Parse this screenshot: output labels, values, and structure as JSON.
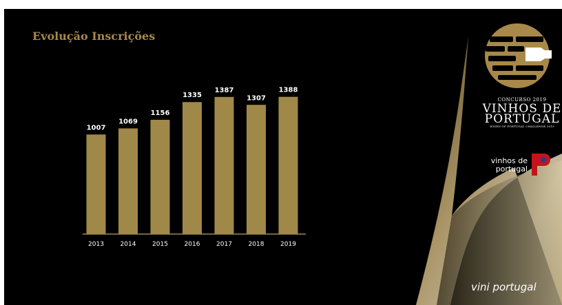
{
  "slide": {
    "title": "Evolução Inscrições"
  },
  "branding": {
    "contest_line1": "CONCURSO 2019",
    "contest_line2": "VINHOS DE PORTUGAL",
    "contest_line3": "WINES OF PORTUGAL CHALLENGE 2019",
    "vinhos_line1": "vinhos de",
    "vinhos_line2": "portugal",
    "footer": "vini portugal",
    "colors": {
      "gold": "#a8894a",
      "background": "#000000",
      "red": "#c0161b",
      "text": "#ffffff"
    }
  },
  "chart_data": {
    "type": "bar",
    "title": "",
    "xlabel": "",
    "ylabel": "",
    "categories": [
      "2013",
      "2014",
      "2015",
      "2016",
      "2017",
      "2018",
      "2019"
    ],
    "values": [
      1007,
      1069,
      1156,
      1335,
      1387,
      1307,
      1388
    ],
    "data_labels": [
      "1007",
      "1069",
      "1156",
      "1335",
      "1387",
      "1307",
      "1388"
    ],
    "ylim": [
      0,
      1650
    ],
    "grid": false,
    "bar_color": "#a08848"
  }
}
